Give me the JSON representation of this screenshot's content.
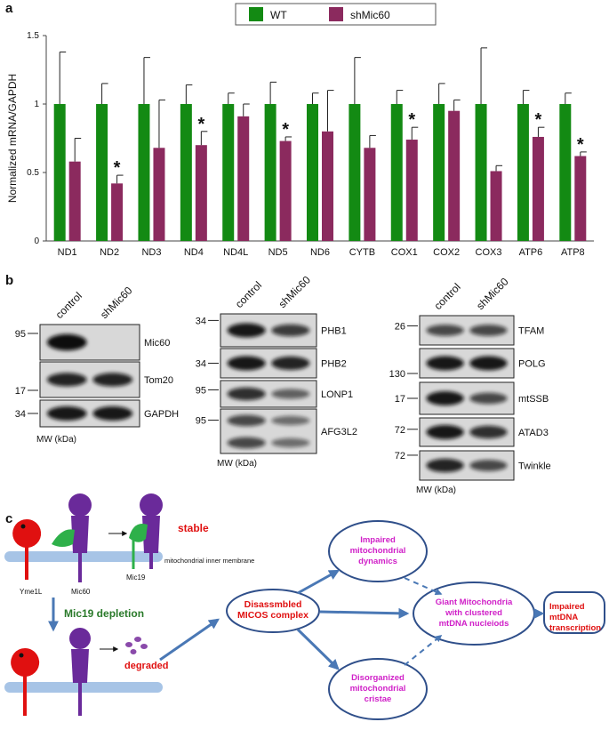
{
  "panel_labels": [
    "a",
    "b",
    "c"
  ],
  "chart_data": {
    "type": "bar",
    "ylabel": "Normalized mRNA/GAPDH",
    "categories": [
      "ND1",
      "ND2",
      "ND3",
      "ND4",
      "ND4L",
      "ND5",
      "ND6",
      "CYTB",
      "COX1",
      "COX2",
      "COX3",
      "ATP6",
      "ATP8"
    ],
    "series": [
      {
        "name": "WT",
        "color": "#138a13",
        "values": [
          1,
          1,
          1,
          1,
          1,
          1,
          1,
          1,
          1,
          1,
          1,
          1,
          1
        ],
        "errors": [
          0.38,
          0.15,
          0.34,
          0.14,
          0.08,
          0.16,
          0.08,
          0.34,
          0.1,
          0.15,
          0.41,
          0.1,
          0.08
        ]
      },
      {
        "name": "shMic60",
        "color": "#8b2a5e",
        "values": [
          0.58,
          0.42,
          0.68,
          0.7,
          0.91,
          0.73,
          0.8,
          0.68,
          0.74,
          0.95,
          0.51,
          0.76,
          0.62
        ],
        "errors": [
          0.17,
          0.06,
          0.35,
          0.1,
          0.09,
          0.03,
          0.3,
          0.09,
          0.09,
          0.08,
          0.04,
          0.07,
          0.03
        ],
        "significance": [
          null,
          "*",
          null,
          "*",
          null,
          "*",
          null,
          null,
          "*",
          null,
          null,
          "*",
          "*"
        ]
      }
    ],
    "ylim": [
      0,
      1.5
    ],
    "yticks": [
      0,
      0.5,
      1,
      1.5
    ],
    "grid": false
  },
  "blots": [
    {
      "lanes": [
        "control",
        "shMic60"
      ],
      "mw_unit": "MW (kDa)",
      "rows": [
        {
          "protein": "Mic60",
          "mw": 95
        },
        {
          "protein": "Tom20",
          "mw": 17
        },
        {
          "protein": "GAPDH",
          "mw": 34
        }
      ]
    },
    {
      "lanes": [
        "control",
        "shMic60"
      ],
      "mw_unit": "MW (kDa)",
      "rows": [
        {
          "protein": "PHB1",
          "mw": 34
        },
        {
          "protein": "PHB2",
          "mw": 34
        },
        {
          "protein": "LONP1",
          "mw": 95
        },
        {
          "protein": "AFG3L2",
          "mw": 95
        }
      ]
    },
    {
      "lanes": [
        "control",
        "shMic60"
      ],
      "mw_unit": "MW (kDa)",
      "rows": [
        {
          "protein": "TFAM",
          "mw": 26
        },
        {
          "protein": "POLG",
          "mw": 130
        },
        {
          "protein": "mtSSB",
          "mw": 17
        },
        {
          "protein": "ATAD3",
          "mw": 72
        },
        {
          "protein": "Twinkle",
          "mw": 72
        }
      ]
    }
  ],
  "diagram": {
    "stable": "stable",
    "membrane": "mitochondrial inner membrane",
    "yme1l": "Yme1L",
    "mic60": "Mic60",
    "mic19": "Mic19",
    "depletion": "Mic19 depletion",
    "degraded": "degraded",
    "micos": [
      "Disassmbled",
      "MICOS complex"
    ],
    "dynamics": [
      "Impaired",
      "mitochondrial",
      "dynamics"
    ],
    "giant": [
      "Giant Mitochondria",
      "with clustered",
      "mtDNA nucleiods"
    ],
    "cristae": [
      "Disorganized",
      "mitochondrial",
      "cristae"
    ],
    "transcription": [
      "Impaired",
      "mtDNA",
      "transcription"
    ]
  }
}
